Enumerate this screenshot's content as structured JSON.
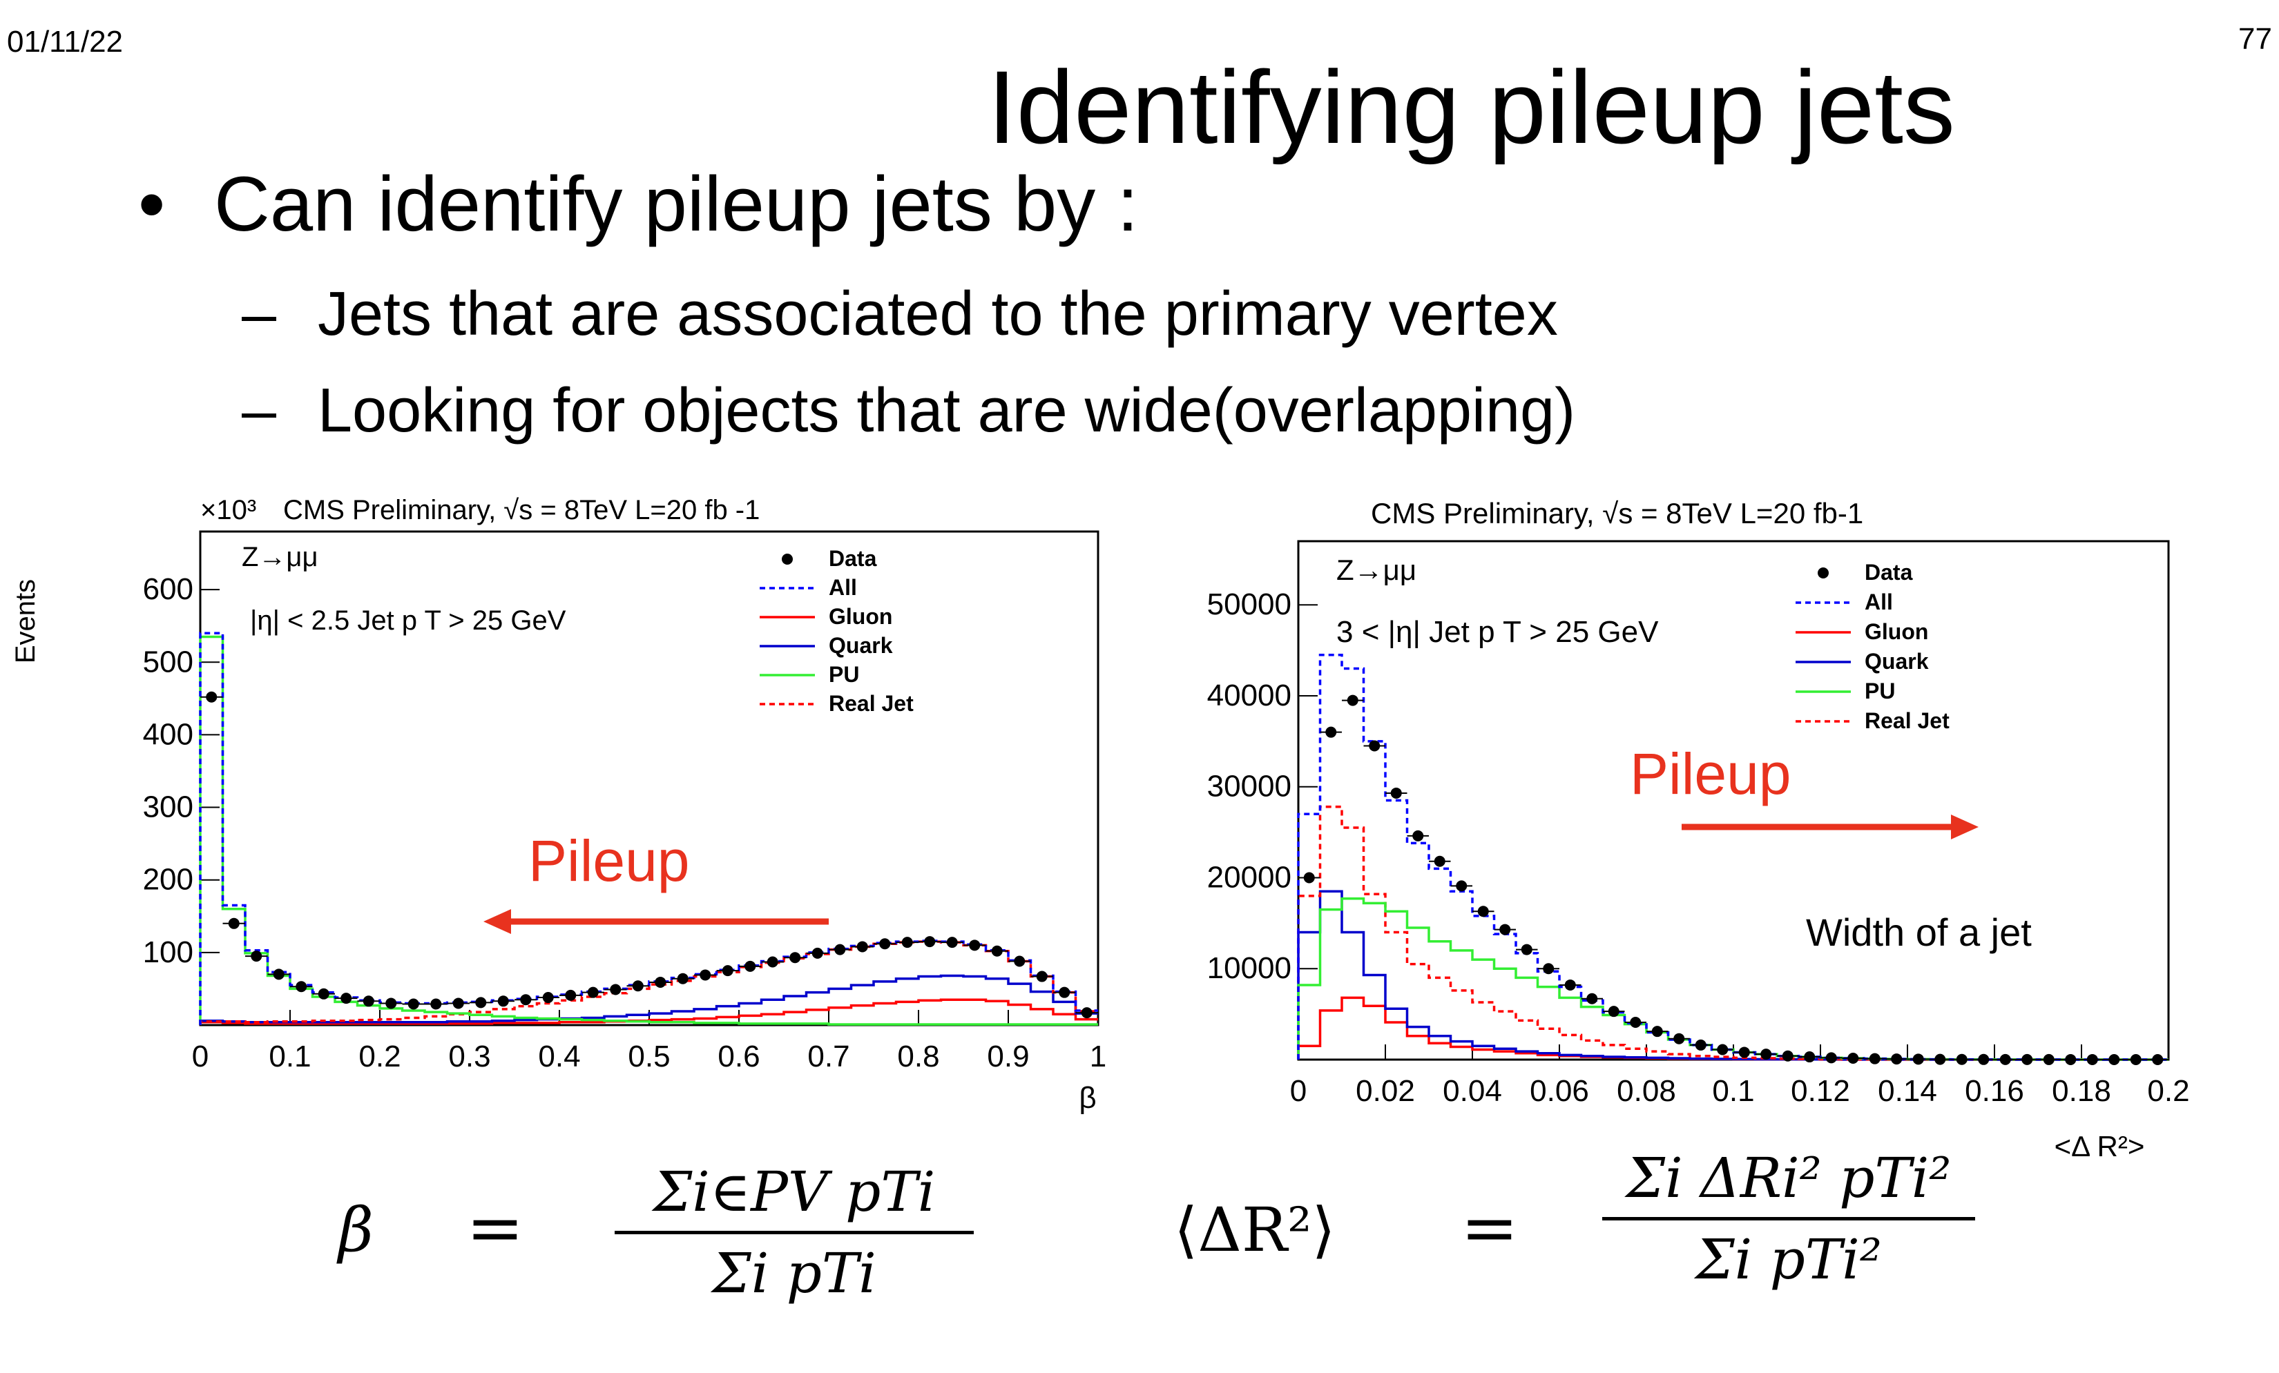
{
  "header": {
    "date": "01/11/22",
    "page_number": "77"
  },
  "slide": {
    "title": "Identifying pileup jets",
    "bullet": "Can identify pileup jets by  :",
    "bullet_marker": "•",
    "sub_marker": "–",
    "subbullets": [
      "Jets that are associated to the primary vertex",
      "Looking for objects that are wide(overlapping)"
    ]
  },
  "colors": {
    "data": "#000000",
    "all": "#0000ff",
    "gluon": "#ff0000",
    "quark": "#0000cc",
    "pu": "#33ee33",
    "realjet": "#ff0000",
    "annotation": "#e8321e"
  },
  "chart_data": [
    {
      "type": "line",
      "title": "CMS Preliminary,  √s = 8TeV L=20 fb -1",
      "y_multiplier": "×10³",
      "xlabel": "β",
      "ylabel": "Events",
      "text_lines": [
        "Z→μμ",
        "|η| < 2.5 Jet p T > 25 GeV"
      ],
      "annotation": "Pileup",
      "annotation_direction": "left",
      "legend_position": "top-right",
      "xlim": [
        0,
        1
      ],
      "ylim": [
        0,
        680
      ],
      "x_ticks": [
        0,
        0.1,
        0.2,
        0.3,
        0.4,
        0.5,
        0.6,
        0.7,
        0.8,
        0.9,
        1
      ],
      "y_ticks": [
        100,
        200,
        300,
        400,
        500,
        600
      ],
      "legend": [
        {
          "name": "Data",
          "style": "marker"
        },
        {
          "name": "All",
          "style": "dotted",
          "color": "#0000ff"
        },
        {
          "name": "Gluon",
          "style": "solid",
          "color": "#ff0000"
        },
        {
          "name": "Quark",
          "style": "solid",
          "color": "#0000cc"
        },
        {
          "name": "PU",
          "style": "solid",
          "color": "#33ee33"
        },
        {
          "name": "Real Jet",
          "style": "dotted",
          "color": "#ff0000"
        }
      ],
      "bin_edges": [
        0,
        0.025,
        0.05,
        0.075,
        0.1,
        0.125,
        0.15,
        0.175,
        0.2,
        0.225,
        0.25,
        0.275,
        0.3,
        0.325,
        0.35,
        0.375,
        0.4,
        0.425,
        0.45,
        0.475,
        0.5,
        0.525,
        0.55,
        0.575,
        0.6,
        0.625,
        0.65,
        0.675,
        0.7,
        0.725,
        0.75,
        0.775,
        0.8,
        0.825,
        0.85,
        0.875,
        0.9,
        0.925,
        0.95,
        0.975,
        1.0
      ],
      "series": [
        {
          "name": "Data",
          "values": [
            452,
            140,
            95,
            70,
            53,
            43,
            37,
            33,
            30,
            29,
            29,
            30,
            31,
            33,
            35,
            38,
            41,
            45,
            49,
            54,
            59,
            64,
            69,
            75,
            81,
            87,
            93,
            99,
            104,
            108,
            112,
            114,
            115,
            114,
            110,
            102,
            88,
            67,
            45,
            17
          ]
        },
        {
          "name": "All",
          "values": [
            540,
            165,
            103,
            73,
            55,
            45,
            38,
            34,
            31,
            30,
            30,
            31,
            32,
            34,
            36,
            39,
            42,
            46,
            50,
            55,
            60,
            65,
            70,
            76,
            82,
            88,
            94,
            100,
            105,
            109,
            113,
            115,
            116,
            115,
            111,
            103,
            89,
            68,
            46,
            20
          ]
        },
        {
          "name": "Gluon",
          "values": [
            4,
            3,
            2,
            2,
            2,
            2,
            2,
            2,
            2,
            2,
            2,
            2,
            2,
            3,
            3,
            3,
            4,
            4,
            5,
            6,
            7,
            8,
            9,
            11,
            13,
            15,
            18,
            21,
            24,
            27,
            30,
            32,
            34,
            35,
            35,
            33,
            28,
            22,
            15,
            8
          ]
        },
        {
          "name": "Quark",
          "values": [
            6,
            5,
            4,
            4,
            4,
            4,
            4,
            4,
            4,
            4,
            4,
            5,
            5,
            6,
            7,
            8,
            9,
            10,
            12,
            14,
            16,
            19,
            22,
            26,
            30,
            35,
            40,
            45,
            50,
            55,
            60,
            64,
            67,
            68,
            67,
            64,
            57,
            46,
            32,
            16
          ]
        },
        {
          "name": "PU",
          "values": [
            535,
            160,
            99,
            68,
            50,
            39,
            32,
            27,
            23,
            20,
            18,
            16,
            14,
            12,
            10,
            9,
            8,
            7,
            6,
            5,
            4,
            4,
            3,
            3,
            2,
            2,
            2,
            2,
            1,
            1,
            1,
            1,
            1,
            1,
            1,
            1,
            1,
            1,
            1,
            1
          ]
        },
        {
          "name": "Real Jet",
          "values": [
            5,
            5,
            4,
            5,
            5,
            6,
            6,
            7,
            8,
            10,
            12,
            15,
            18,
            22,
            26,
            30,
            34,
            39,
            44,
            50,
            56,
            61,
            67,
            73,
            80,
            86,
            92,
            98,
            104,
            108,
            112,
            114,
            115,
            114,
            110,
            102,
            88,
            67,
            45,
            19
          ]
        }
      ]
    },
    {
      "type": "line",
      "title": "CMS Preliminary, √s = 8TeV L=20 fb-1",
      "xlabel": "<Δ R²>",
      "ylabel": "",
      "text_lines": [
        "Z→μμ",
        "3 < |η|   Jet p T > 25 GeV"
      ],
      "annotation": "Pileup",
      "annotation_direction": "right",
      "side_note": "Width of a jet",
      "legend_position": "top-right",
      "xlim": [
        0,
        0.2
      ],
      "ylim": [
        0,
        57000
      ],
      "x_ticks": [
        0,
        0.02,
        0.04,
        0.06,
        0.08,
        0.1,
        0.12,
        0.14,
        0.16,
        0.18,
        0.2
      ],
      "x_tick_labels": [
        "0",
        "0.02",
        "0.04",
        "0.06",
        "0.08",
        "0.1",
        "0.12",
        "0.14",
        "0.16",
        "0.18",
        "0.2"
      ],
      "y_ticks": [
        10000,
        20000,
        30000,
        40000,
        50000
      ],
      "legend": [
        {
          "name": "Data",
          "style": "marker"
        },
        {
          "name": "All",
          "style": "dotted",
          "color": "#0000ff"
        },
        {
          "name": "Gluon",
          "style": "solid",
          "color": "#ff0000"
        },
        {
          "name": "Quark",
          "style": "solid",
          "color": "#0000cc"
        },
        {
          "name": "PU",
          "style": "solid",
          "color": "#33ee33"
        },
        {
          "name": "Real Jet",
          "style": "dotted",
          "color": "#ff0000"
        }
      ],
      "bin_edges": [
        0,
        0.005,
        0.01,
        0.015,
        0.02,
        0.025,
        0.03,
        0.035,
        0.04,
        0.045,
        0.05,
        0.055,
        0.06,
        0.065,
        0.07,
        0.075,
        0.08,
        0.085,
        0.09,
        0.095,
        0.1,
        0.105,
        0.11,
        0.115,
        0.12,
        0.125,
        0.13,
        0.135,
        0.14,
        0.145,
        0.15,
        0.155,
        0.16,
        0.165,
        0.17,
        0.175,
        0.18,
        0.185,
        0.19,
        0.195,
        0.2
      ],
      "series": [
        {
          "name": "Data",
          "values": [
            20000,
            36000,
            39500,
            34500,
            29300,
            24600,
            21800,
            19100,
            16300,
            14300,
            12100,
            10000,
            8200,
            6700,
            5300,
            4100,
            3100,
            2300,
            1600,
            1100,
            800,
            600,
            400,
            300,
            200,
            150,
            100,
            70,
            50,
            30,
            20,
            15,
            10,
            8,
            5,
            4,
            3,
            2,
            1,
            1
          ]
        },
        {
          "name": "All",
          "values": [
            27000,
            44500,
            43000,
            35000,
            28500,
            23800,
            21000,
            18500,
            15800,
            13800,
            11700,
            9700,
            8000,
            6500,
            5200,
            4000,
            3000,
            2200,
            1600,
            1100,
            800,
            600,
            400,
            300,
            200,
            150,
            100,
            70,
            50,
            30,
            20,
            15,
            10,
            8,
            5,
            4,
            3,
            2,
            1,
            1
          ]
        },
        {
          "name": "Gluon",
          "values": [
            1500,
            5400,
            6800,
            5900,
            4100,
            2600,
            1800,
            1400,
            1100,
            900,
            700,
            500,
            400,
            300,
            250,
            200,
            150,
            100,
            80,
            60,
            40,
            30,
            20,
            15,
            10,
            8,
            5,
            4,
            3,
            2,
            1,
            1,
            1,
            1,
            1,
            1,
            1,
            1,
            1,
            1
          ]
        },
        {
          "name": "Quark",
          "values": [
            14000,
            18500,
            14000,
            9300,
            5600,
            3600,
            2600,
            2000,
            1500,
            1200,
            900,
            700,
            500,
            400,
            300,
            250,
            200,
            150,
            100,
            80,
            60,
            40,
            30,
            20,
            15,
            10,
            8,
            5,
            4,
            3,
            2,
            1,
            1,
            1,
            1,
            1,
            1,
            1,
            1,
            1
          ]
        },
        {
          "name": "PU",
          "values": [
            8200,
            16500,
            17700,
            17200,
            16300,
            14500,
            13000,
            12000,
            11000,
            10000,
            9000,
            8000,
            6800,
            5800,
            4900,
            3900,
            3000,
            2200,
            1600,
            1100,
            800,
            600,
            400,
            300,
            200,
            150,
            100,
            70,
            50,
            30,
            20,
            15,
            10,
            8,
            5,
            4,
            3,
            2,
            1,
            1
          ]
        },
        {
          "name": "Real Jet",
          "values": [
            18000,
            27800,
            25500,
            18200,
            14000,
            10500,
            9000,
            7600,
            6300,
            5300,
            4300,
            3400,
            2700,
            2100,
            1600,
            1200,
            900,
            600,
            400,
            300,
            200,
            150,
            100,
            70,
            50,
            30,
            20,
            15,
            10,
            8,
            5,
            4,
            3,
            2,
            1,
            1,
            1,
            1,
            1,
            1
          ]
        }
      ]
    }
  ],
  "formulas": {
    "beta_lhs": "β",
    "equals": "=",
    "beta_num": "Σi∈PV pTi",
    "beta_den": "Σi pTi",
    "dr_lhs": "⟨ΔR²⟩",
    "dr_num": "Σi ΔRi² pTi²",
    "dr_den": "Σi pTi²"
  }
}
